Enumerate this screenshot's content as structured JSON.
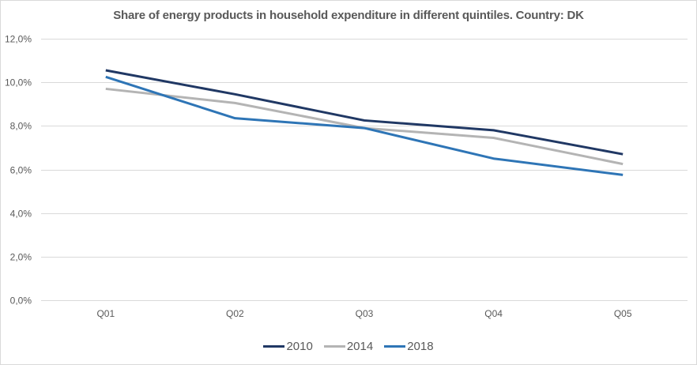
{
  "chart_data": {
    "type": "line",
    "title": "Share of energy products in household expenditure in different quintiles. Country: DK",
    "xlabel": "",
    "ylabel": "",
    "categories": [
      "Q01",
      "Q02",
      "Q03",
      "Q04",
      "Q05"
    ],
    "ylim": [
      0,
      12
    ],
    "yticks": [
      0,
      2,
      4,
      6,
      8,
      10,
      12
    ],
    "ytick_labels": [
      "0,0%",
      "2,0%",
      "4,0%",
      "6,0%",
      "8,0%",
      "10,0%",
      "12,0%"
    ],
    "grid": true,
    "legend_position": "bottom",
    "series": [
      {
        "name": "2010",
        "color": "#203864",
        "values": [
          10.55,
          9.45,
          8.25,
          7.8,
          6.7
        ]
      },
      {
        "name": "2014",
        "color": "#b4b4b4",
        "values": [
          9.7,
          9.05,
          7.9,
          7.45,
          6.25
        ]
      },
      {
        "name": "2018",
        "color": "#2e75b6",
        "values": [
          10.25,
          8.35,
          7.9,
          6.5,
          5.75
        ]
      }
    ]
  }
}
